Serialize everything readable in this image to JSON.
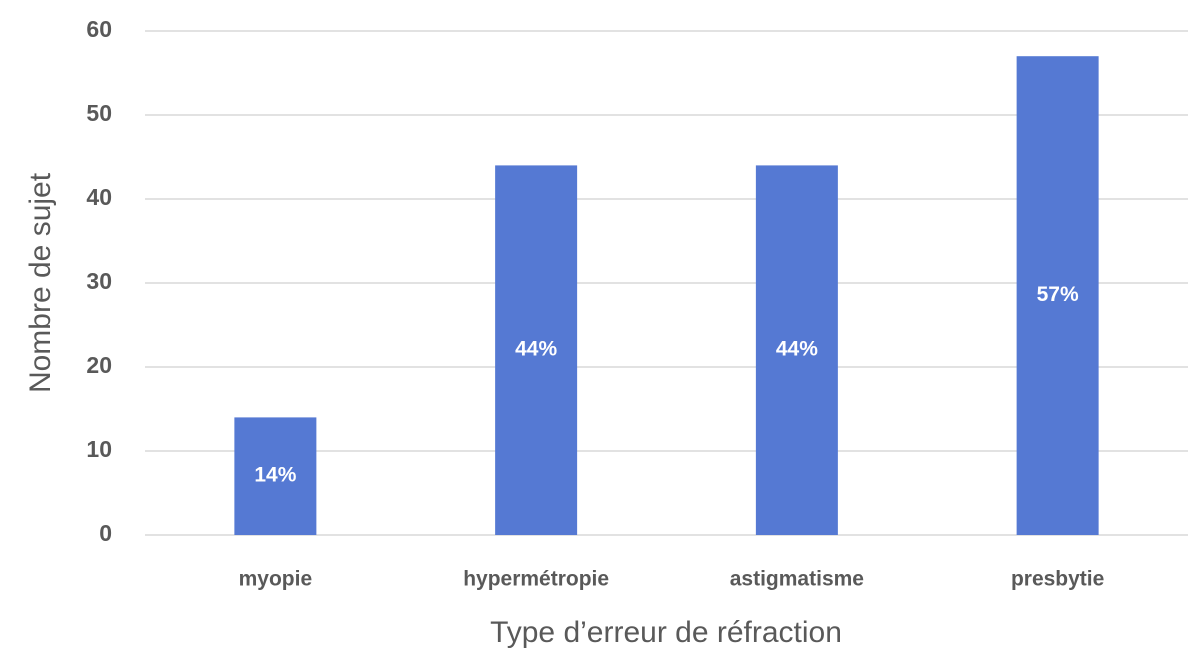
{
  "chart_data": {
    "type": "bar",
    "x_label": "Type d’erreur de réfraction",
    "y_label": "Nombre de sujet",
    "categories": [
      "myopie",
      "hypermétropie",
      "astigmatisme",
      "presbytie"
    ],
    "values": [
      14,
      44,
      44,
      57
    ],
    "value_labels": [
      "14%",
      "44%",
      "44%",
      "57%"
    ],
    "color": "#5579d3",
    "ylim": [
      0,
      60
    ],
    "yticks": [
      0,
      10,
      20,
      30,
      40,
      50,
      60
    ],
    "grid": true
  }
}
